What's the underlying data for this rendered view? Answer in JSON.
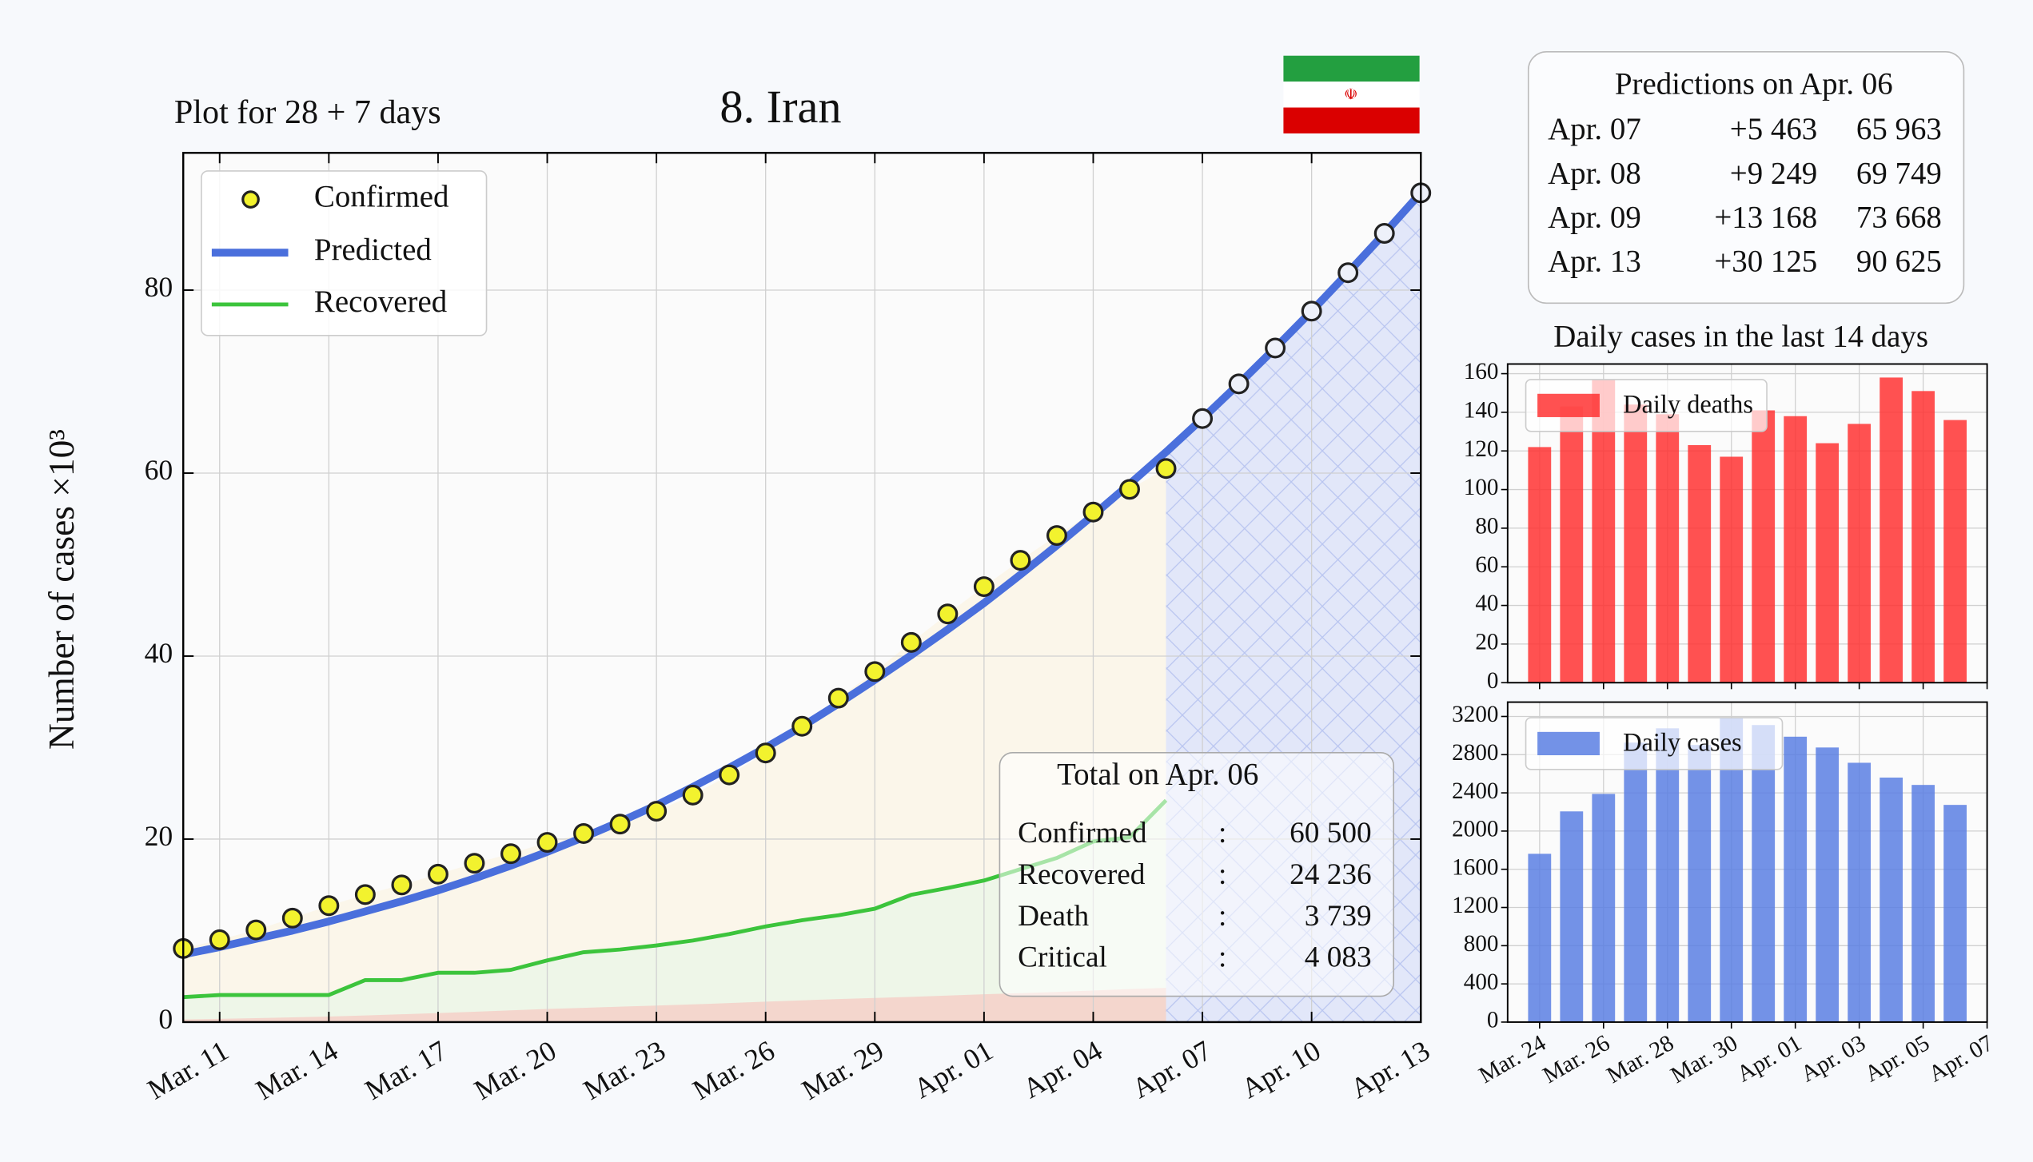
{
  "chart_data": [
    {
      "type": "line",
      "title": "8. Iran",
      "subtitle": "Plot for 28 + 7 days",
      "y_label": "Number of cases ×10³",
      "categories": [
        null,
        "Mar. 11",
        null,
        null,
        "Mar. 14",
        null,
        null,
        "Mar. 17",
        null,
        null,
        "Mar. 20",
        null,
        null,
        "Mar. 23",
        null,
        null,
        "Mar. 26",
        null,
        null,
        "Mar. 29",
        null,
        null,
        "Apr. 01",
        null,
        null,
        "Apr. 04",
        null,
        null,
        "Apr. 07",
        null,
        null,
        "Apr. 10",
        null,
        null,
        "Apr. 13"
      ],
      "ylim": [
        0,
        95
      ],
      "yticks": [
        0,
        20,
        40,
        60,
        80
      ],
      "grid": true,
      "legend": "upper left",
      "series": [
        {
          "name": "Confirmed",
          "color": "#f2f22e",
          "values": [
            8.042,
            9.0,
            10.075,
            11.364,
            12.729,
            13.938,
            14.991,
            16.169,
            17.361,
            18.407,
            19.644,
            20.61,
            21.638,
            23.049,
            24.811,
            27.017,
            29.406,
            32.332,
            35.408,
            38.309,
            41.495,
            44.605,
            47.593,
            50.468,
            53.183,
            55.743,
            58.226,
            60.5,
            null,
            null,
            null,
            null,
            null,
            null,
            null
          ]
        },
        {
          "name": "Predicted",
          "color": "#4a6fdc",
          "values": [
            7.4,
            8.2,
            9.1,
            10.0,
            11.0,
            12.1,
            13.2,
            14.4,
            15.7,
            17.1,
            18.6,
            20.2,
            21.9,
            23.7,
            25.7,
            27.8,
            30.0,
            32.3,
            34.8,
            37.4,
            40.1,
            42.9,
            45.8,
            48.9,
            52.1,
            55.4,
            58.8,
            62.3,
            65.963,
            69.749,
            73.668,
            77.7,
            81.9,
            86.2,
            90.625
          ]
        },
        {
          "name": "Recovered",
          "color": "#3cc43c",
          "values": [
            2.731,
            2.959,
            2.959,
            2.959,
            2.959,
            4.59,
            4.59,
            5.389,
            5.389,
            5.71,
            6.745,
            7.635,
            7.931,
            8.376,
            8.913,
            9.625,
            10.457,
            11.133,
            11.679,
            12.391,
            13.911,
            14.656,
            15.473,
            16.711,
            17.935,
            19.736,
            20.2,
            24.236,
            null,
            null,
            null,
            null,
            null,
            null,
            null
          ]
        },
        {
          "color": "#ff9a9a",
          "values": [
            0.291,
            0.354,
            0.429,
            0.514,
            0.611,
            0.724,
            0.853,
            0.988,
            1.135,
            1.284,
            1.433,
            1.556,
            1.685,
            1.812,
            1.934,
            2.077,
            2.234,
            2.378,
            2.517,
            2.64,
            2.757,
            2.898,
            3.036,
            3.16,
            3.294,
            3.452,
            3.603,
            3.739,
            null,
            null,
            null,
            null,
            null,
            null,
            null
          ]
        }
      ]
    },
    {
      "type": "bar",
      "title": "Daily cases in the last 14 days",
      "categories": [
        "Mar. 24",
        null,
        "Mar. 26",
        null,
        "Mar. 28",
        null,
        "Mar. 30",
        null,
        "Apr. 01",
        null,
        "Apr. 03",
        null,
        "Apr. 05",
        null,
        "Apr. 07"
      ],
      "ylim": [
        0,
        165
      ],
      "yticks": [
        0,
        20,
        40,
        60,
        80,
        100,
        120,
        140,
        160
      ],
      "grid": true,
      "legend": "upper left",
      "series": [
        {
          "name": "Daily deaths",
          "color": "#ff3333",
          "values": [
            122,
            143,
            157,
            144,
            139,
            123,
            117,
            141,
            138,
            124,
            134,
            158,
            151,
            136,
            null
          ]
        }
      ]
    },
    {
      "type": "bar",
      "categories": [
        "Mar. 24",
        null,
        "Mar. 26",
        null,
        "Mar. 28",
        null,
        "Mar. 30",
        null,
        "Apr. 01",
        null,
        "Apr. 03",
        null,
        "Apr. 05",
        null,
        "Apr. 07"
      ],
      "ylim": [
        0,
        3350
      ],
      "yticks": [
        0,
        400,
        800,
        1200,
        1600,
        2000,
        2400,
        2800,
        3200
      ],
      "grid": true,
      "legend": "upper left",
      "series": [
        {
          "name": "Daily cases",
          "color": "#5b7fe3",
          "values": [
            1762,
            2206,
            2389,
            2926,
            3076,
            2901,
            3186,
            3110,
            2988,
            2875,
            2715,
            2560,
            2483,
            2274,
            null
          ]
        }
      ]
    }
  ],
  "totals": {
    "title": "Total on Apr. 06",
    "rows": [
      [
        "Confirmed",
        ":",
        "60 500"
      ],
      [
        "Recovered",
        ":",
        "24 236"
      ],
      [
        "Death",
        ":",
        "3 739"
      ],
      [
        "Critical",
        ":",
        "4 083"
      ]
    ]
  },
  "predictions": {
    "title": "Predictions on Apr. 06",
    "rows": [
      [
        "Apr. 07",
        "+5 463",
        "65 963"
      ],
      [
        "Apr. 08",
        "+9 249",
        "69 749"
      ],
      [
        "Apr. 09",
        "+13 168",
        "73 668"
      ],
      [
        "Apr. 13",
        "+30 125",
        "90 625"
      ]
    ]
  }
}
